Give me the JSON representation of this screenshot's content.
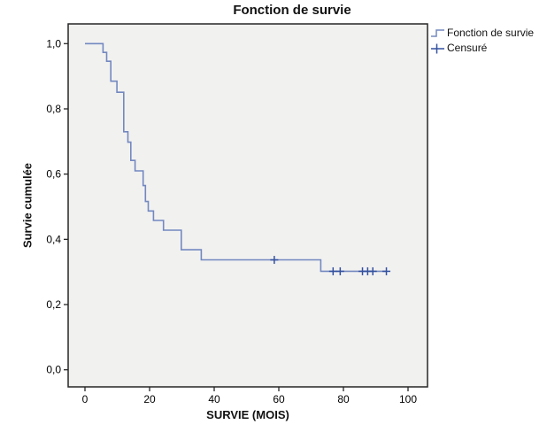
{
  "chart_data": {
    "type": "line",
    "subtype": "kaplan-meier-step",
    "title": "Fonction de survie",
    "xlabel": "SURVIE (MOIS)",
    "ylabel": "Survie cumulée",
    "xlim": [
      -5.2,
      106
    ],
    "ylim": [
      -0.052,
      1.06
    ],
    "grid": false,
    "legend_position": "top-right-outside",
    "x_ticks": [
      {
        "value": 0,
        "label": "0"
      },
      {
        "value": 20,
        "label": "20"
      },
      {
        "value": 40,
        "label": "40"
      },
      {
        "value": 60,
        "label": "60"
      },
      {
        "value": 80,
        "label": "80"
      },
      {
        "value": 100,
        "label": "100"
      }
    ],
    "y_ticks": [
      {
        "value": 0.0,
        "label": "0,0"
      },
      {
        "value": 0.2,
        "label": "0,2"
      },
      {
        "value": 0.4,
        "label": "0,4"
      },
      {
        "value": 0.6,
        "label": "0,6"
      },
      {
        "value": 0.8,
        "label": "0,8"
      },
      {
        "value": 1.0,
        "label": "1,0"
      }
    ],
    "legend": [
      {
        "label": "Fonction de survie",
        "marker": "step"
      },
      {
        "label": "Censuré",
        "marker": "plus"
      }
    ],
    "series": [
      {
        "name": "Fonction de survie",
        "segments": [
          [
            0.0,
            5.6,
            1.0
          ],
          [
            5.6,
            6.7,
            0.973
          ],
          [
            6.7,
            8.0,
            0.946
          ],
          [
            8.0,
            9.9,
            0.885
          ],
          [
            9.9,
            12.0,
            0.851
          ],
          [
            12.0,
            13.3,
            0.73
          ],
          [
            13.3,
            14.2,
            0.698
          ],
          [
            14.2,
            15.5,
            0.642
          ],
          [
            15.5,
            18.0,
            0.61
          ],
          [
            18.0,
            18.7,
            0.565
          ],
          [
            18.7,
            19.6,
            0.516
          ],
          [
            19.6,
            21.2,
            0.487
          ],
          [
            21.2,
            24.3,
            0.458
          ],
          [
            24.3,
            29.8,
            0.428
          ],
          [
            29.8,
            36.0,
            0.368
          ],
          [
            36.0,
            73.0,
            0.337
          ],
          [
            73.0,
            93.3,
            0.302
          ]
        ]
      }
    ],
    "censored": [
      [
        58.6,
        0.337
      ],
      [
        76.8,
        0.302
      ],
      [
        79.0,
        0.302
      ],
      [
        85.9,
        0.302
      ],
      [
        87.5,
        0.302
      ],
      [
        89.1,
        0.302
      ],
      [
        93.3,
        0.302
      ]
    ],
    "colors": {
      "line": "#7388BF",
      "censor": "#33519F",
      "plot_bg": "#F1F1F0",
      "axis": "#262626",
      "text": "#000000"
    }
  }
}
